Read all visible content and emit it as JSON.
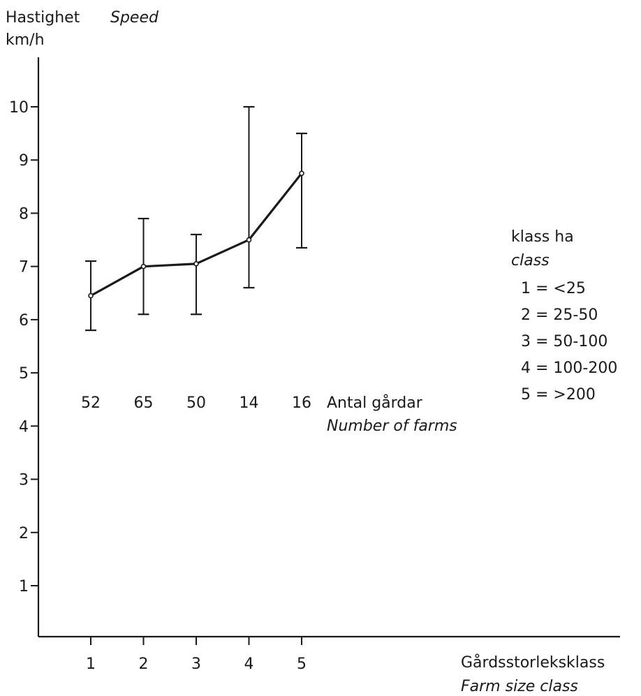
{
  "chart_data": {
    "type": "line",
    "y_axis": {
      "label_sv": "Hastighet",
      "label_en": "Speed",
      "unit": "km/h",
      "ticks": [
        "1",
        "2",
        "3",
        "4",
        "5",
        "6",
        "7",
        "8",
        "9",
        "10"
      ],
      "ylim": [
        0,
        11
      ]
    },
    "x_axis": {
      "label_sv": "Gårdsstorleksklass",
      "label_en": "Farm size class",
      "categories": [
        "1",
        "2",
        "3",
        "4",
        "5"
      ]
    },
    "series": [
      {
        "points": [
          {
            "x": 1,
            "y": 6.45,
            "low": 5.8,
            "high": 7.1
          },
          {
            "x": 2,
            "y": 7.0,
            "low": 6.1,
            "high": 7.9
          },
          {
            "x": 3,
            "y": 7.05,
            "low": 6.1,
            "high": 7.6
          },
          {
            "x": 4,
            "y": 7.5,
            "low": 6.6,
            "high": 10.0
          },
          {
            "x": 5,
            "y": 8.75,
            "low": 7.35,
            "high": 9.5
          }
        ]
      }
    ],
    "counts": {
      "label_sv": "Antal gårdar",
      "label_en": "Number of farms",
      "values": [
        "52",
        "65",
        "50",
        "14",
        "16"
      ]
    },
    "class_legend": {
      "title_sv": "klass ha",
      "title_en": "class",
      "entries": [
        "1 = <25",
        "2 = 25-50",
        "3 = 50-100",
        "4 = 100-200",
        "5 = >200"
      ]
    },
    "grid": false
  }
}
